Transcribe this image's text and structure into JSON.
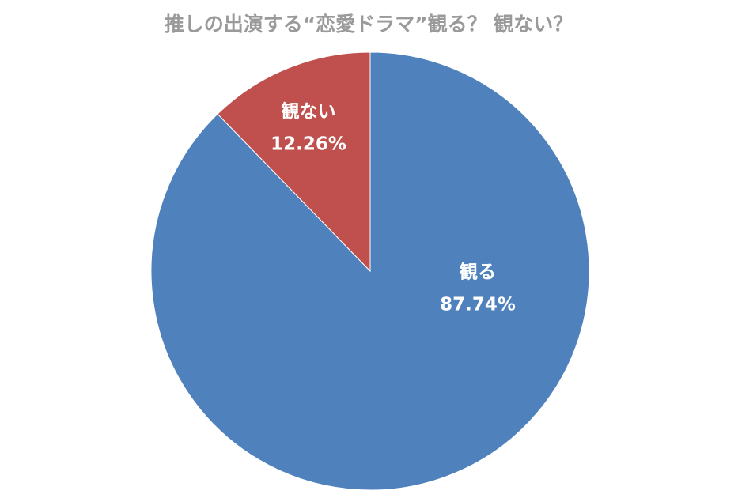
{
  "chart_data": {
    "type": "pie",
    "title": "推しの出演する“恋愛ドラマ”観る？ 観ない？",
    "categories": [
      "観る",
      "観ない"
    ],
    "values": [
      87.74,
      12.26
    ],
    "value_labels": [
      "87.74%",
      "12.26%"
    ],
    "colors": [
      "#4f81bd",
      "#c0504d"
    ]
  }
}
